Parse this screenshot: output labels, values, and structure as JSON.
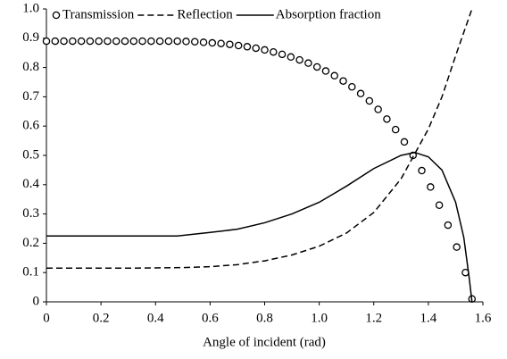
{
  "chart_data": {
    "type": "line",
    "xlabel": "Angle of incident (rad)",
    "xlim": [
      0,
      1.6
    ],
    "xticks": [
      0,
      0.2,
      0.4,
      0.6,
      0.8,
      {
        "value": 1,
        "label": "1.0"
      },
      1.2,
      1.4,
      1.6
    ],
    "ylim": [
      0,
      1
    ],
    "yticks": [
      0,
      0.1,
      0.2,
      0.3,
      0.4,
      0.5,
      0.6,
      0.7,
      0.8,
      0.9,
      {
        "value": 1,
        "label": "1.0"
      }
    ],
    "grid": false,
    "legend": "upper center",
    "series": [
      {
        "name": "Transmission",
        "color": "#000000",
        "style": "markers",
        "x": [
          0,
          0.032,
          0.064,
          0.096,
          0.128,
          0.16,
          0.192,
          0.224,
          0.256,
          0.288,
          0.32,
          0.352,
          0.384,
          0.416,
          0.448,
          0.48,
          0.512,
          0.544,
          0.576,
          0.608,
          0.64,
          0.672,
          0.704,
          0.736,
          0.768,
          0.8,
          0.832,
          0.864,
          0.896,
          0.928,
          0.96,
          0.992,
          1.024,
          1.056,
          1.088,
          1.12,
          1.152,
          1.184,
          1.216,
          1.248,
          1.28,
          1.312,
          1.344,
          1.376,
          1.408,
          1.44,
          1.472,
          1.504,
          1.536,
          1.56
        ],
        "values": [
          0.89,
          0.89,
          0.89,
          0.89,
          0.89,
          0.89,
          0.89,
          0.89,
          0.89,
          0.89,
          0.89,
          0.89,
          0.89,
          0.89,
          0.89,
          0.89,
          0.889,
          0.888,
          0.886,
          0.884,
          0.882,
          0.879,
          0.875,
          0.871,
          0.866,
          0.86,
          0.853,
          0.845,
          0.836,
          0.826,
          0.815,
          0.802,
          0.788,
          0.772,
          0.754,
          0.734,
          0.711,
          0.686,
          0.657,
          0.624,
          0.588,
          0.546,
          0.5,
          0.448,
          0.392,
          0.33,
          0.262,
          0.187,
          0.1,
          0.01
        ]
      },
      {
        "name": "Reflection",
        "color": "#000000",
        "style": "dashed",
        "x": [
          0,
          0.1,
          0.2,
          0.3,
          0.4,
          0.5,
          0.6,
          0.7,
          0.8,
          0.9,
          1.0,
          1.1,
          1.2,
          1.3,
          1.4,
          1.45,
          1.5,
          1.56
        ],
        "values": [
          0.115,
          0.115,
          0.115,
          0.115,
          0.116,
          0.117,
          0.12,
          0.127,
          0.14,
          0.16,
          0.19,
          0.235,
          0.305,
          0.42,
          0.59,
          0.7,
          0.84,
          1.0
        ]
      },
      {
        "name": "Absorption fraction",
        "color": "#000000",
        "style": "solid",
        "x": [
          0,
          0.48,
          0.6,
          0.7,
          0.8,
          0.9,
          1.0,
          1.1,
          1.2,
          1.3,
          1.35,
          1.4,
          1.45,
          1.5,
          1.53,
          1.55,
          1.56
        ],
        "values": [
          0.225,
          0.225,
          0.237,
          0.248,
          0.27,
          0.3,
          0.34,
          0.395,
          0.455,
          0.5,
          0.51,
          0.495,
          0.45,
          0.34,
          0.22,
          0.08,
          0
        ]
      }
    ]
  }
}
